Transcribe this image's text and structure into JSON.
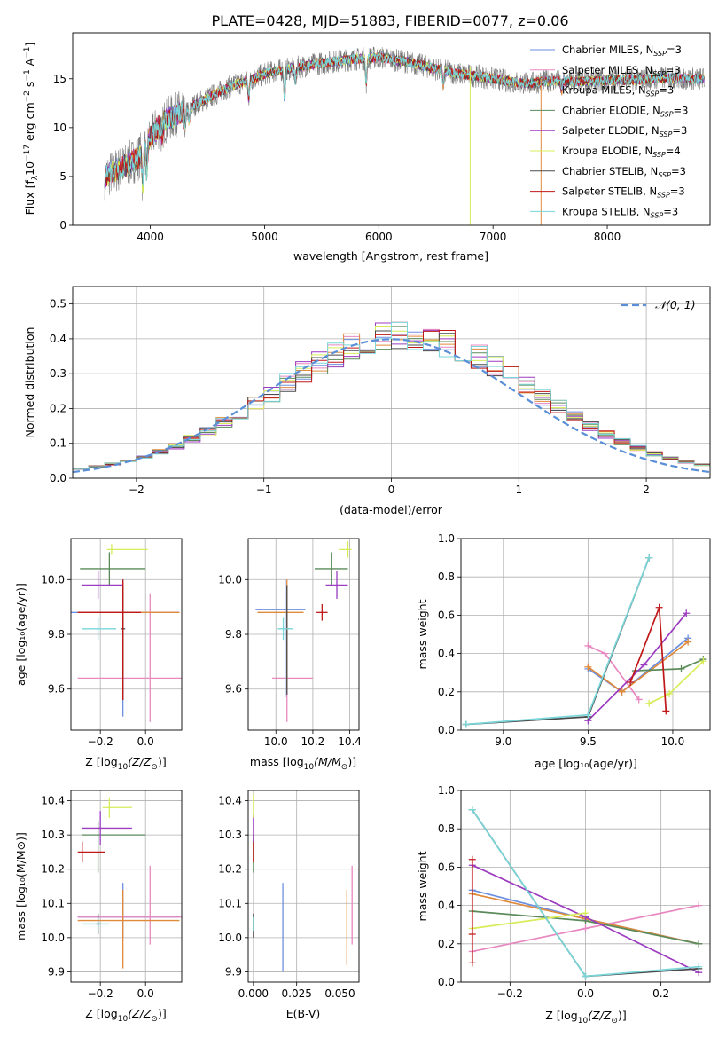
{
  "title": "PLATE=0428, MJD=51883, FIBERID=0077, z=0.06",
  "colors": {
    "Chabrier MILES": "#6b8fe0",
    "Salpeter MILES": "#e888c0",
    "Kroupa MILES": "#e08a3c",
    "Chabrier ELODIE": "#5a8a5a",
    "Salpeter ELODIE": "#9c3cc0",
    "Kroupa ELODIE": "#d8ec5a",
    "Chabrier STELIB": "#4a4a4a",
    "Salpeter STELIB": "#c01818",
    "Kroupa STELIB": "#7ad6d8",
    "data": "#7a7a7a",
    "normal": "#5a8fd8"
  },
  "chart_data": [
    {
      "type": "line",
      "id": "spectrum",
      "title": "PLATE=0428, MJD=51883, FIBERID=0077, z=0.06",
      "xlabel": "wavelength [Angstrom, rest frame]",
      "ylabel_main": "Flux [f",
      "ylabel_sub": "λ",
      "ylabel_rest": "10",
      "ylabel_exp": "−17",
      "ylabel_tail": " erg cm",
      "ylabel_exp2": "−2",
      "ylabel_tail2": " s",
      "ylabel_exp3": "−1",
      "ylabel_tail3": " A",
      "ylabel_exp4": "−1",
      "ylabel_end": "]",
      "xlim": [
        3320,
        8900
      ],
      "ylim": [
        0,
        19.7
      ],
      "xticks": [
        4000,
        5000,
        6000,
        7000,
        8000
      ],
      "yticks": [
        0,
        5,
        10,
        15
      ],
      "grid": false,
      "legend_position": "top-right",
      "continuum_x": [
        3600,
        3800,
        3900,
        4000,
        4100,
        4300,
        4500,
        4700,
        4900,
        5000,
        5100,
        5300,
        5500,
        5700,
        5900,
        6000,
        6100,
        6300,
        6500,
        6700,
        6900,
        7100,
        7300,
        7500,
        7700,
        7900,
        8100,
        8300,
        8500,
        8700,
        8850
      ],
      "continuum_y": [
        5.0,
        6.2,
        7.0,
        9.0,
        10.5,
        11.8,
        13.0,
        14.2,
        15.0,
        15.5,
        15.8,
        16.2,
        16.6,
        16.9,
        17.1,
        17.2,
        17.0,
        16.6,
        16.0,
        15.5,
        15.2,
        14.8,
        14.5,
        14.8,
        14.7,
        14.8,
        14.9,
        14.9,
        15.1,
        15.0,
        15.0
      ],
      "series": [
        {
          "name": "Chabrier MILES",
          "ssp": "3"
        },
        {
          "name": "Salpeter MILES",
          "ssp": "3"
        },
        {
          "name": "Kroupa MILES",
          "ssp": "3"
        },
        {
          "name": "Chabrier ELODIE",
          "ssp": "3"
        },
        {
          "name": "Salpeter ELODIE",
          "ssp": "3"
        },
        {
          "name": "Kroupa ELODIE",
          "ssp": "4"
        },
        {
          "name": "Chabrier STELIB",
          "ssp": "3"
        },
        {
          "name": "Salpeter STELIB",
          "ssp": "3"
        },
        {
          "name": "Kroupa STELIB",
          "ssp": "3"
        }
      ],
      "legend_prefix": "N",
      "legend_sub": "SSP"
    },
    {
      "type": "histogram",
      "id": "residuals",
      "xlabel": "(data-model)/error",
      "ylabel": "Normed distribution",
      "xlim": [
        -2.5,
        2.5
      ],
      "ylim": [
        0,
        0.55
      ],
      "xticks": [
        -2,
        -1,
        0,
        1,
        2
      ],
      "yticks": [
        0.0,
        0.1,
        0.2,
        0.3,
        0.4,
        0.5
      ],
      "grid": true,
      "legend_position": "top-right",
      "legend_label": "𝒩(0, 1)",
      "bin_width": 0.125,
      "bin_start": -2.5
    },
    {
      "type": "scatter",
      "id": "age-vs-Z",
      "xlabel": "Z [log",
      "xlabel_sub": "10",
      "xlabel_rest": "(Z/Z",
      "xlabel_sun": "⊙",
      "xlabel_end": ")]",
      "ylabel": "age  [log₁₀(age/yr)]",
      "xlim": [
        -0.33,
        0.16
      ],
      "ylim": [
        9.45,
        10.15
      ],
      "xticks": [
        -0.2,
        0.0
      ],
      "xtick_labels": [
        "−0.2",
        "0.0"
      ],
      "yticks": [
        9.6,
        9.8,
        10.0
      ],
      "grid": true,
      "points": [
        {
          "name": "Chabrier MILES",
          "x": -0.1,
          "y": 9.88,
          "xerr": [
            0.3,
            0.25
          ],
          "yerr": [
            0.38,
            0.12
          ]
        },
        {
          "name": "Salpeter MILES",
          "x": 0.02,
          "y": 9.64,
          "xerr": [
            0.32,
            0.14
          ],
          "yerr": [
            0.16,
            0.31
          ]
        },
        {
          "name": "Kroupa MILES",
          "x": -0.1,
          "y": 9.88,
          "xerr": [
            0.2,
            0.25
          ],
          "yerr": [
            0.25,
            0.11
          ]
        },
        {
          "name": "Chabrier ELODIE",
          "x": -0.16,
          "y": 10.04,
          "xerr": [
            0.13,
            0.16
          ],
          "yerr": [
            0.06,
            0.06
          ]
        },
        {
          "name": "Salpeter ELODIE",
          "x": -0.21,
          "y": 9.98,
          "xerr": [
            0.07,
            0.11
          ],
          "yerr": [
            0.05,
            0.05
          ]
        },
        {
          "name": "Kroupa ELODIE",
          "x": -0.15,
          "y": 10.11,
          "xerr": [
            0.02,
            0.16
          ],
          "yerr": [
            0.02,
            0.02
          ]
        },
        {
          "name": "Chabrier STELIB",
          "x": -0.1,
          "y": 9.82,
          "xerr": [
            0.01,
            0.01
          ],
          "yerr": [
            0.26,
            0.16
          ]
        },
        {
          "name": "Salpeter STELIB",
          "x": -0.1,
          "y": 9.88,
          "xerr": [
            0.2,
            0.08
          ],
          "yerr": [
            0.32,
            0.12
          ]
        },
        {
          "name": "Kroupa STELIB",
          "x": -0.21,
          "y": 9.82,
          "xerr": [
            0.07,
            0.08
          ],
          "yerr": [
            0.04,
            0.04
          ]
        }
      ]
    },
    {
      "type": "scatter",
      "id": "age-vs-mass",
      "xlabel": "mass [log",
      "xlabel_sub": "10",
      "xlabel_rest": "(M/M",
      "xlabel_sun": "⊙",
      "xlabel_end": ")]",
      "xlim": [
        9.85,
        10.45
      ],
      "ylim": [
        9.45,
        10.15
      ],
      "xticks": [
        10.0,
        10.2,
        10.4
      ],
      "xtick_labels": [
        "10.0",
        "10.2",
        "10.4"
      ],
      "yticks": [
        9.6,
        9.8,
        10.0
      ],
      "grid": true,
      "points": [
        {
          "name": "Chabrier MILES",
          "x": 10.05,
          "y": 9.89,
          "xerr": [
            0.16,
            0.11
          ],
          "yerr": [
            0.32,
            0.11
          ]
        },
        {
          "name": "Salpeter MILES",
          "x": 10.06,
          "y": 9.64,
          "xerr": [
            0.08,
            0.14
          ],
          "yerr": [
            0.16,
            0.31
          ]
        },
        {
          "name": "Kroupa MILES",
          "x": 10.06,
          "y": 9.88,
          "xerr": [
            0.16,
            0.09
          ],
          "yerr": [
            0.28,
            0.12
          ]
        },
        {
          "name": "Chabrier ELODIE",
          "x": 10.3,
          "y": 10.04,
          "xerr": [
            0.09,
            0.09
          ],
          "yerr": [
            0.06,
            0.06
          ]
        },
        {
          "name": "Salpeter ELODIE",
          "x": 10.33,
          "y": 9.98,
          "xerr": [
            0.06,
            0.06
          ],
          "yerr": [
            0.05,
            0.05
          ]
        },
        {
          "name": "Kroupa ELODIE",
          "x": 10.39,
          "y": 10.11,
          "xerr": [
            0.05,
            0.02
          ],
          "yerr": [
            0.03,
            0.03
          ]
        },
        {
          "name": "Chabrier STELIB",
          "x": 10.06,
          "y": 9.82,
          "xerr": [
            0.01,
            0.01
          ],
          "yerr": [
            0.24,
            0.16
          ]
        },
        {
          "name": "Salpeter STELIB",
          "x": 10.25,
          "y": 9.88,
          "xerr": [
            0.03,
            0.03
          ],
          "yerr": [
            0.03,
            0.03
          ]
        },
        {
          "name": "Kroupa STELIB",
          "x": 10.04,
          "y": 9.82,
          "xerr": [
            0.03,
            0.05
          ],
          "yerr": [
            0.04,
            0.04
          ]
        }
      ]
    },
    {
      "type": "line",
      "id": "weight-vs-age",
      "xlabel": "age  [log₁₀(age/yr)]",
      "ylabel": "mass weight",
      "xlim": [
        8.75,
        10.22
      ],
      "ylim": [
        0,
        1.0
      ],
      "xticks": [
        9.0,
        9.5,
        10.0
      ],
      "xtick_labels": [
        "9.0",
        "9.5",
        "10.0"
      ],
      "yticks": [
        0.0,
        0.2,
        0.4,
        0.6,
        0.8,
        1.0
      ],
      "grid": true,
      "series": [
        {
          "name": "Chabrier MILES",
          "x": [
            9.5,
            9.7,
            10.09
          ],
          "y": [
            0.32,
            0.2,
            0.48
          ]
        },
        {
          "name": "Salpeter MILES",
          "x": [
            9.5,
            9.6,
            9.8
          ],
          "y": [
            0.44,
            0.4,
            0.16
          ]
        },
        {
          "name": "Kroupa MILES",
          "x": [
            9.5,
            9.7,
            10.09
          ],
          "y": [
            0.33,
            0.2,
            0.46
          ]
        },
        {
          "name": "Chabrier ELODIE",
          "x": [
            9.78,
            10.05,
            10.18
          ],
          "y": [
            0.31,
            0.32,
            0.37
          ]
        },
        {
          "name": "Salpeter ELODIE",
          "x": [
            9.5,
            9.83,
            10.08
          ],
          "y": [
            0.05,
            0.34,
            0.61
          ]
        },
        {
          "name": "Kroupa ELODIE",
          "x": [
            9.86,
            9.98,
            10.18
          ],
          "y": [
            0.14,
            0.19,
            0.36
          ]
        },
        {
          "name": "Chabrier STELIB",
          "x": [
            8.78,
            9.5,
            9.86
          ],
          "y": [
            0.03,
            0.07,
            0.9
          ]
        },
        {
          "name": "Salpeter STELIB",
          "x": [
            9.75,
            9.92,
            9.96
          ],
          "y": [
            0.25,
            0.64,
            0.1
          ]
        },
        {
          "name": "Kroupa STELIB",
          "x": [
            8.78,
            9.5,
            9.86
          ],
          "y": [
            0.03,
            0.08,
            0.9
          ]
        }
      ]
    },
    {
      "type": "scatter",
      "id": "mass-vs-Z",
      "xlabel": "Z [log",
      "xlabel_sub": "10",
      "xlabel_rest": "(Z/Z",
      "xlabel_sun": "⊙",
      "xlabel_end": ")]",
      "ylabel": "mass [log₁₀(M/M⊙)]",
      "xlim": [
        -0.33,
        0.16
      ],
      "ylim": [
        9.87,
        10.43
      ],
      "xticks": [
        -0.2,
        0.0
      ],
      "xtick_labels": [
        "−0.2",
        "0.0"
      ],
      "yticks": [
        9.9,
        10.0,
        10.1,
        10.2,
        10.3,
        10.4
      ],
      "grid": true,
      "points": [
        {
          "name": "Chabrier MILES",
          "x": -0.1,
          "y": 10.06,
          "xerr": [
            0.2,
            0.25
          ],
          "yerr": [
            0.06,
            0.1
          ]
        },
        {
          "name": "Salpeter MILES",
          "x": 0.02,
          "y": 10.06,
          "xerr": [
            0.32,
            0.14
          ],
          "yerr": [
            0.08,
            0.15
          ]
        },
        {
          "name": "Kroupa MILES",
          "x": -0.1,
          "y": 10.05,
          "xerr": [
            0.2,
            0.25
          ],
          "yerr": [
            0.14,
            0.09
          ]
        },
        {
          "name": "Chabrier ELODIE",
          "x": -0.21,
          "y": 10.3,
          "xerr": [
            0.07,
            0.21
          ],
          "yerr": [
            0.11,
            0.04
          ]
        },
        {
          "name": "Salpeter ELODIE",
          "x": -0.2,
          "y": 10.32,
          "xerr": [
            0.08,
            0.14
          ],
          "yerr": [
            0.05,
            0.05
          ]
        },
        {
          "name": "Kroupa ELODIE",
          "x": -0.16,
          "y": 10.38,
          "xerr": [
            0.03,
            0.1
          ],
          "yerr": [
            0.03,
            0.03
          ]
        },
        {
          "name": "Chabrier STELIB",
          "x": -0.21,
          "y": 10.04,
          "xerr": [
            0.01,
            0.01
          ],
          "yerr": [
            0.03,
            0.03
          ]
        },
        {
          "name": "Salpeter STELIB",
          "x": -0.28,
          "y": 10.25,
          "xerr": [
            0.02,
            0.1
          ],
          "yerr": [
            0.03,
            0.03
          ]
        },
        {
          "name": "Kroupa STELIB",
          "x": -0.21,
          "y": 10.04,
          "xerr": [
            0.07,
            0.05
          ],
          "yerr": [
            0.02,
            0.02
          ]
        }
      ]
    },
    {
      "type": "scatter",
      "id": "mass-vs-EBV",
      "xlabel": "E(B-V)",
      "xlim": [
        -0.003,
        0.061
      ],
      "ylim": [
        9.87,
        10.43
      ],
      "xticks": [
        0.0,
        0.025,
        0.05
      ],
      "xtick_labels": [
        "0.000",
        "0.025",
        "0.050"
      ],
      "yticks": [
        9.9,
        10.0,
        10.1,
        10.2,
        10.3,
        10.4
      ],
      "grid": true,
      "points": [
        {
          "name": "Chabrier MILES",
          "x": 0.017,
          "y": 10.06,
          "xerr": [
            0,
            0
          ],
          "yerr": [
            0.16,
            0.1
          ]
        },
        {
          "name": "Salpeter MILES",
          "x": 0.057,
          "y": 10.09,
          "xerr": [
            0,
            0
          ],
          "yerr": [
            0.11,
            0.12
          ]
        },
        {
          "name": "Kroupa MILES",
          "x": 0.054,
          "y": 10.05,
          "xerr": [
            0,
            0
          ],
          "yerr": [
            0.13,
            0.09
          ]
        },
        {
          "name": "Chabrier ELODIE",
          "x": 0.0,
          "y": 10.26,
          "xerr": [
            0,
            0
          ],
          "yerr": [
            0.07,
            0.04
          ]
        },
        {
          "name": "Salpeter ELODIE",
          "x": 0.0,
          "y": 10.32,
          "xerr": [
            0,
            0
          ],
          "yerr": [
            0.04,
            0.04
          ]
        },
        {
          "name": "Kroupa ELODIE",
          "x": 0.0,
          "y": 10.38,
          "xerr": [
            0,
            0
          ],
          "yerr": [
            0.03,
            0.04
          ]
        },
        {
          "name": "Chabrier STELIB",
          "x": 0.0,
          "y": 10.04,
          "xerr": [
            0,
            0
          ],
          "yerr": [
            0.04,
            0.03
          ]
        },
        {
          "name": "Salpeter STELIB",
          "x": 0.0,
          "y": 10.25,
          "xerr": [
            0,
            0
          ],
          "yerr": [
            0.03,
            0.03
          ]
        },
        {
          "name": "Kroupa STELIB",
          "x": 0.0,
          "y": 10.04,
          "xerr": [
            0,
            0
          ],
          "yerr": [
            0.02,
            0.02
          ]
        }
      ]
    },
    {
      "type": "line",
      "id": "weight-vs-Z",
      "xlabel": "Z [log",
      "xlabel_sub": "10",
      "xlabel_rest": "(Z/Z",
      "xlabel_sun": "⊙",
      "xlabel_end": ")]",
      "ylabel": "mass weight",
      "xlim": [
        -0.33,
        0.33
      ],
      "ylim": [
        0,
        1.0
      ],
      "xticks": [
        -0.2,
        0.0,
        0.2
      ],
      "xtick_labels": [
        "−0.2",
        "0.0",
        "0.2"
      ],
      "yticks": [
        0.0,
        0.2,
        0.4,
        0.6,
        0.8,
        1.0
      ],
      "grid": true,
      "series": [
        {
          "name": "Chabrier MILES",
          "x": [
            -0.3,
            0.0,
            0.3
          ],
          "y": [
            0.48,
            0.33,
            0.2
          ]
        },
        {
          "name": "Salpeter MILES",
          "x": [
            -0.3,
            0.0,
            0.3
          ],
          "y": [
            0.16,
            0.28,
            0.4
          ]
        },
        {
          "name": "Kroupa MILES",
          "x": [
            -0.3,
            0.0,
            0.3
          ],
          "y": [
            0.46,
            0.33,
            0.2
          ]
        },
        {
          "name": "Chabrier ELODIE",
          "x": [
            -0.3,
            0.0,
            0.3
          ],
          "y": [
            0.37,
            0.32,
            0.2
          ]
        },
        {
          "name": "Salpeter ELODIE",
          "x": [
            -0.3,
            0.0,
            0.3
          ],
          "y": [
            0.61,
            0.34,
            0.05
          ]
        },
        {
          "name": "Kroupa ELODIE",
          "x": [
            -0.3,
            0.0
          ],
          "y": [
            0.28,
            0.36
          ]
        },
        {
          "name": "Chabrier STELIB",
          "x": [
            -0.3,
            0.0,
            0.3
          ],
          "y": [
            0.9,
            0.03,
            0.07
          ]
        },
        {
          "name": "Salpeter STELIB",
          "x": [
            -0.3,
            -0.3,
            -0.3
          ],
          "y": [
            0.1,
            0.25,
            0.64
          ]
        },
        {
          "name": "Kroupa STELIB",
          "x": [
            -0.3,
            0.0,
            0.3
          ],
          "y": [
            0.9,
            0.03,
            0.08
          ]
        }
      ]
    }
  ]
}
